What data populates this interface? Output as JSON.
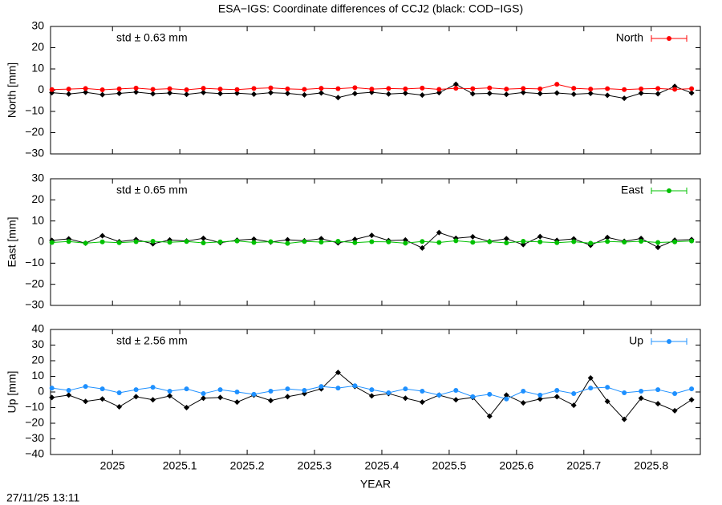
{
  "page_title": "ESA−IGS: Coordinate differences of CCJ2 (black: COD−IGS)",
  "timestamp": "27/11/25 13:11",
  "chart_data": [
    {
      "type": "line",
      "ylabel": "North [mm]",
      "annotation": "std ± 0.63 mm",
      "annotation_color": "#ff0000",
      "xlim": [
        2024.908,
        2025.873
      ],
      "xticks": [
        2025,
        2025.1,
        2025.2,
        2025.3,
        2025.4,
        2025.5,
        2025.6,
        2025.7,
        2025.8
      ],
      "ylim": [
        -30,
        30
      ],
      "yticks": [
        -30,
        -20,
        -10,
        0,
        10,
        20,
        30
      ],
      "legend": "top-right",
      "x": [
        2024.91,
        2024.935,
        2024.96,
        2024.985,
        2025.01,
        2025.035,
        2025.06,
        2025.085,
        2025.11,
        2025.135,
        2025.16,
        2025.185,
        2025.21,
        2025.235,
        2025.26,
        2025.285,
        2025.31,
        2025.335,
        2025.36,
        2025.385,
        2025.41,
        2025.435,
        2025.46,
        2025.485,
        2025.51,
        2025.535,
        2025.56,
        2025.585,
        2025.61,
        2025.635,
        2025.66,
        2025.685,
        2025.71,
        2025.735,
        2025.76,
        2025.785,
        2025.81,
        2025.835,
        2025.86
      ],
      "background_series": {
        "color": "#000000",
        "values": [
          -1.2,
          -1.8,
          -1.0,
          -2.1,
          -1.5,
          -0.9,
          -1.7,
          -1.3,
          -2.0,
          -1.1,
          -1.6,
          -1.4,
          -1.9,
          -1.2,
          -1.5,
          -2.2,
          -1.3,
          -3.5,
          -1.6,
          -1.0,
          -1.8,
          -1.4,
          -2.3,
          -1.2,
          2.8,
          -1.7,
          -1.5,
          -2.0,
          -1.1,
          -1.6,
          -1.3,
          -1.9,
          -1.5,
          -2.4,
          -3.8,
          -1.4,
          -1.7,
          1.8,
          -1.3
        ]
      },
      "series": [
        {
          "name": "North",
          "color": "#ff0000",
          "values": [
            0.3,
            0.5,
            0.8,
            0.2,
            0.6,
            1.0,
            0.4,
            0.7,
            0.2,
            0.9,
            0.5,
            0.3,
            0.8,
            1.1,
            0.6,
            0.4,
            0.9,
            0.7,
            1.2,
            0.5,
            0.8,
            0.6,
            1.0,
            0.4,
            0.9,
            0.7,
            1.1,
            0.5,
            0.8,
            0.6,
            2.8,
            0.9,
            0.5,
            0.7,
            0.3,
            0.6,
            0.8,
            0.4,
            0.7
          ]
        }
      ]
    },
    {
      "type": "line",
      "ylabel": "East [mm]",
      "annotation": "std ± 0.65 mm",
      "annotation_color": "#00c000",
      "xlim": [
        2024.908,
        2025.873
      ],
      "xticks": [
        2025,
        2025.1,
        2025.2,
        2025.3,
        2025.4,
        2025.5,
        2025.6,
        2025.7,
        2025.8
      ],
      "ylim": [
        -30,
        30
      ],
      "yticks": [
        -30,
        -20,
        -10,
        0,
        10,
        20,
        30
      ],
      "legend": "top-right",
      "x": [
        2024.91,
        2024.935,
        2024.96,
        2024.985,
        2025.01,
        2025.035,
        2025.06,
        2025.085,
        2025.11,
        2025.135,
        2025.16,
        2025.185,
        2025.21,
        2025.235,
        2025.26,
        2025.285,
        2025.31,
        2025.335,
        2025.36,
        2025.385,
        2025.41,
        2025.435,
        2025.46,
        2025.485,
        2025.51,
        2025.535,
        2025.56,
        2025.585,
        2025.61,
        2025.635,
        2025.66,
        2025.685,
        2025.71,
        2025.735,
        2025.76,
        2025.785,
        2025.81,
        2025.835,
        2025.86
      ],
      "background_series": {
        "color": "#000000",
        "values": [
          0.8,
          1.5,
          -0.5,
          3.0,
          0.2,
          1.2,
          -0.8,
          1.0,
          0.5,
          1.8,
          -0.3,
          0.9,
          1.4,
          0.0,
          1.1,
          0.6,
          1.6,
          -0.4,
          1.3,
          3.2,
          0.7,
          1.0,
          -2.8,
          4.5,
          1.8,
          2.5,
          0.3,
          1.6,
          -1.2,
          2.6,
          0.8,
          1.5,
          -1.5,
          2.2,
          0.4,
          1.7,
          -2.5,
          0.9,
          1.2
        ]
      },
      "series": [
        {
          "name": "East",
          "color": "#00c000",
          "values": [
            -0.2,
            0.3,
            -0.5,
            0.1,
            -0.3,
            0.2,
            0.4,
            -0.1,
            0.3,
            -0.4,
            0.1,
            0.5,
            -0.2,
            0.2,
            -0.6,
            0.3,
            0.0,
            0.4,
            -0.3,
            0.2,
            0.1,
            -0.5,
            0.3,
            -0.2,
            0.6,
            -0.1,
            0.2,
            -0.4,
            0.4,
            0.1,
            -0.3,
            0.2,
            -0.5,
            0.3,
            0.0,
            0.4,
            -0.2,
            0.1,
            0.5
          ]
        }
      ]
    },
    {
      "type": "line",
      "ylabel": "Up [mm]",
      "xlabel": "YEAR",
      "annotation": "std ± 2.56 mm",
      "annotation_color": "#1e90ff",
      "xlim": [
        2024.908,
        2025.873
      ],
      "xticks": [
        2025,
        2025.1,
        2025.2,
        2025.3,
        2025.4,
        2025.5,
        2025.6,
        2025.7,
        2025.8
      ],
      "ylim": [
        -40,
        40
      ],
      "yticks": [
        -40,
        -30,
        -20,
        -10,
        0,
        10,
        20,
        30,
        40
      ],
      "legend": "top-right",
      "x": [
        2024.91,
        2024.935,
        2024.96,
        2024.985,
        2025.01,
        2025.035,
        2025.06,
        2025.085,
        2025.11,
        2025.135,
        2025.16,
        2025.185,
        2025.21,
        2025.235,
        2025.26,
        2025.285,
        2025.31,
        2025.335,
        2025.36,
        2025.385,
        2025.41,
        2025.435,
        2025.46,
        2025.485,
        2025.51,
        2025.535,
        2025.56,
        2025.585,
        2025.61,
        2025.635,
        2025.66,
        2025.685,
        2025.71,
        2025.735,
        2025.76,
        2025.785,
        2025.81,
        2025.835,
        2025.86
      ],
      "background_series": {
        "color": "#000000",
        "values": [
          -3.5,
          -2.0,
          -6.0,
          -4.5,
          -9.5,
          -3.0,
          -5.0,
          -2.5,
          -10.0,
          -4.0,
          -3.5,
          -6.5,
          -2.0,
          -5.5,
          -3.0,
          -1.0,
          2.0,
          12.5,
          3.5,
          -2.5,
          -1.0,
          -4.0,
          -6.5,
          -2.0,
          -5.0,
          -3.5,
          -15.5,
          -2.0,
          -7.0,
          -4.5,
          -3.0,
          -8.5,
          9.0,
          -6.0,
          -17.5,
          -4.0,
          -7.5,
          -12.0,
          -5.0
        ]
      },
      "series": [
        {
          "name": "Up",
          "color": "#1e90ff",
          "values": [
            2.5,
            1.0,
            3.5,
            2.0,
            -0.5,
            1.5,
            3.0,
            0.5,
            2.0,
            -1.0,
            1.5,
            0.0,
            -1.5,
            0.5,
            2.0,
            1.0,
            3.5,
            2.5,
            4.0,
            1.5,
            -0.5,
            2.0,
            0.5,
            -2.0,
            1.0,
            -3.0,
            -1.5,
            -4.5,
            0.5,
            -2.0,
            1.0,
            -1.0,
            2.5,
            3.0,
            -0.5,
            0.5,
            1.5,
            -1.0,
            2.0
          ]
        }
      ]
    }
  ]
}
